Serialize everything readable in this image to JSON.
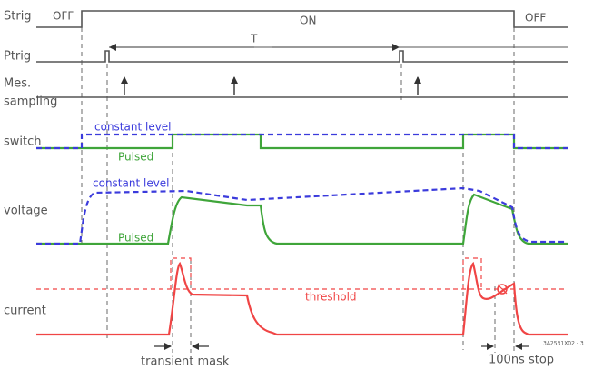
{
  "labels": {
    "strig": "Strig",
    "ptrig": "Ptrig",
    "mes": [
      "Mes.",
      "sampling"
    ],
    "switch": "switch",
    "voltage": "voltage",
    "current": "current"
  },
  "strig_states": [
    "OFF",
    "ON",
    "OFF"
  ],
  "period": "T",
  "switch_legend": {
    "constant": "constant level",
    "pulsed": "Pulsed"
  },
  "voltage_legend": {
    "constant": "constant level",
    "pulsed": "Pulsed"
  },
  "threshold": "threshold",
  "transient_mask": "transient mask",
  "stop": "100ns stop",
  "code": "3A2531X02 - 3"
}
